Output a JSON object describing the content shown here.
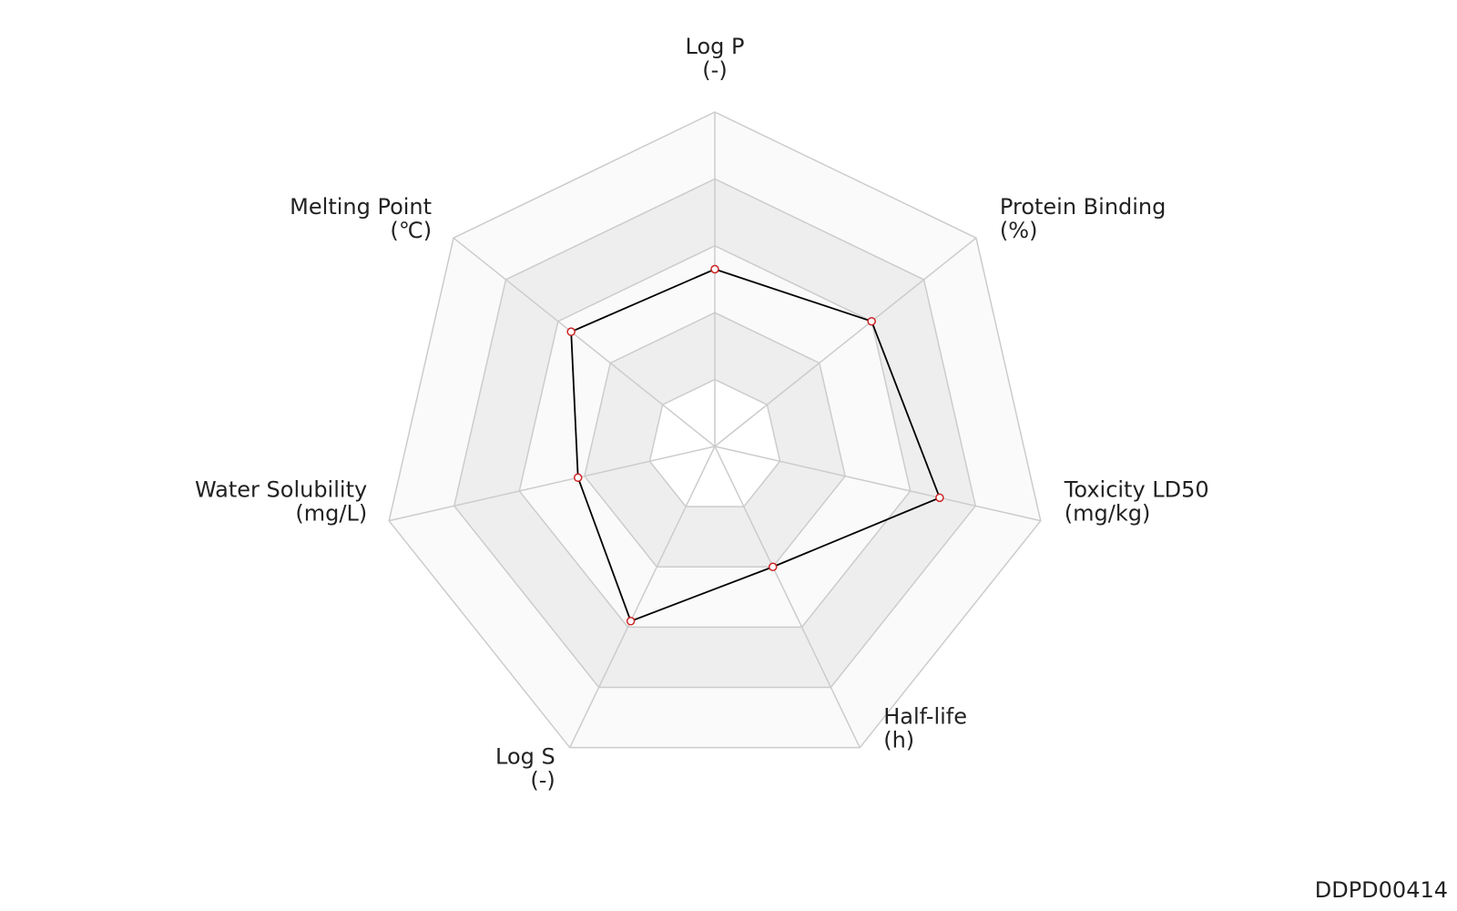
{
  "chart_data": {
    "type": "radar",
    "categories": [
      "Log P",
      "Protein Binding",
      "Toxicity LD50",
      "Half-life",
      "Log S",
      "Water Solubility",
      "Melting Point"
    ],
    "units": [
      "(-)",
      "(%)",
      "(mg/kg)",
      "(h)",
      "(-)",
      "(mg/L)",
      "(℃)"
    ],
    "values": [
      0.53,
      0.6,
      0.69,
      0.4,
      0.58,
      0.42,
      0.55
    ],
    "rlim": [
      0,
      1
    ],
    "rticks": [
      0.2,
      0.4,
      0.6,
      0.8,
      1.0
    ],
    "color": "#000000",
    "marker_color": "#cc2222",
    "band_colors": [
      "#ffffff",
      "#eeeeee",
      "#fafafa",
      "#eeeeee",
      "#fafafa"
    ],
    "grid": true,
    "footnote": "DDPD00414"
  }
}
